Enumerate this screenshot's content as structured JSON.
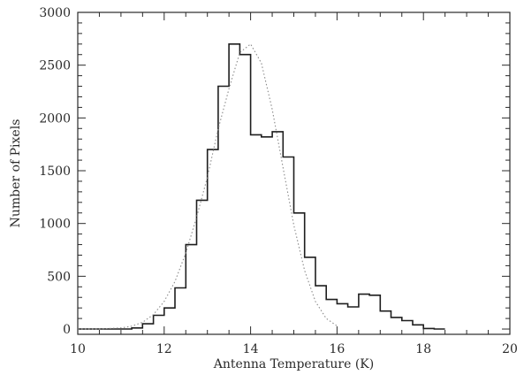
{
  "chart_data": {
    "type": "line",
    "title": "",
    "xlabel": "Antenna Temperature (K)",
    "ylabel": "Number of Pixels",
    "xlim": [
      10,
      20
    ],
    "ylim": [
      -50,
      3000
    ],
    "xticks": [
      10,
      12,
      14,
      16,
      18,
      20
    ],
    "yticks": [
      0,
      500,
      1000,
      1500,
      2000,
      2500,
      3000
    ],
    "grid": false,
    "legend": "none",
    "colors": {
      "axis": "#2a2a2a",
      "histogram": "#1e1e1e",
      "fit": "#8a8a8a"
    },
    "series": [
      {
        "style": "histogram",
        "bin_width": 0.25,
        "x": [
          10.0,
          10.25,
          10.5,
          10.75,
          11.0,
          11.25,
          11.5,
          11.75,
          12.0,
          12.25,
          12.5,
          12.75,
          13.0,
          13.25,
          13.5,
          13.75,
          14.0,
          14.25,
          14.5,
          14.75,
          15.0,
          15.25,
          15.5,
          15.75,
          16.0,
          16.25,
          16.5,
          16.75,
          17.0,
          17.25,
          17.5,
          17.75,
          18.0,
          18.25
        ],
        "values": [
          0,
          0,
          0,
          0,
          0,
          10,
          50,
          130,
          200,
          390,
          800,
          1220,
          1700,
          2300,
          2700,
          2600,
          1840,
          1820,
          1870,
          1630,
          1100,
          680,
          410,
          280,
          240,
          210,
          330,
          320,
          170,
          110,
          80,
          40,
          5,
          0
        ]
      },
      {
        "style": "dotted",
        "x": [
          10.0,
          10.5,
          11.0,
          11.25,
          11.5,
          11.75,
          12.0,
          12.25,
          12.5,
          12.75,
          13.0,
          13.25,
          13.5,
          13.75,
          14.0,
          14.25,
          14.5,
          14.75,
          15.0,
          15.25,
          15.5,
          15.75,
          16.0
        ],
        "values": [
          0,
          1,
          10,
          27,
          64,
          137,
          262,
          450,
          721,
          1059,
          1440,
          1895,
          2275,
          2620,
          2700,
          2520,
          2080,
          1530,
          985,
          555,
          260,
          100,
          30
        ]
      }
    ]
  }
}
